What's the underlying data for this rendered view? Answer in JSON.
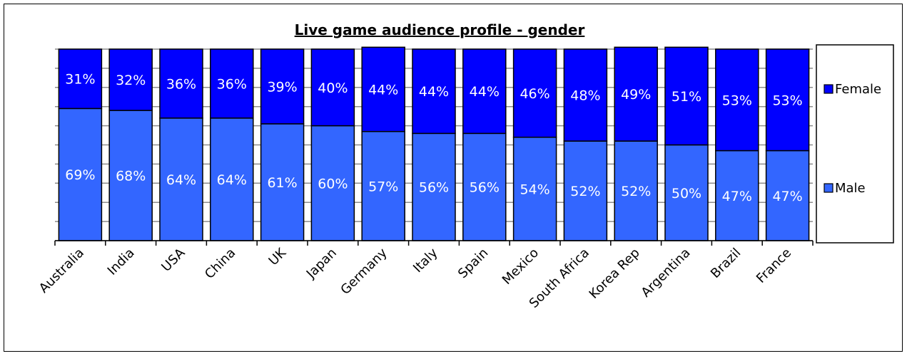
{
  "chart_data": {
    "type": "bar",
    "stacked": true,
    "title": "Live game audience profile - gender",
    "xlabel": "",
    "ylabel": "",
    "ylim": [
      0,
      100
    ],
    "grid": true,
    "legend_position": "right",
    "categories": [
      "Australia",
      "India",
      "USA",
      "China",
      "UK",
      "Japan",
      "Germany",
      "Italy",
      "Spain",
      "Mexico",
      "South Africa",
      "Korea Rep",
      "Argentina",
      "Brazil",
      "France"
    ],
    "series": [
      {
        "name": "Male",
        "color": "#3366ff",
        "values": [
          69,
          68,
          64,
          64,
          61,
          60,
          57,
          56,
          56,
          54,
          52,
          52,
          50,
          47,
          47
        ],
        "labels": [
          "69%",
          "68%",
          "64%",
          "64%",
          "61%",
          "60%",
          "57%",
          "56%",
          "56%",
          "54%",
          "52%",
          "52%",
          "50%",
          "47%",
          "47%"
        ]
      },
      {
        "name": "Female",
        "color": "#0000ff",
        "values": [
          31,
          32,
          36,
          36,
          39,
          40,
          44,
          44,
          44,
          46,
          48,
          49,
          51,
          53,
          53
        ],
        "labels": [
          "31%",
          "32%",
          "36%",
          "36%",
          "39%",
          "40%",
          "44%",
          "44%",
          "44%",
          "46%",
          "48%",
          "49%",
          "51%",
          "53%",
          "53%"
        ]
      }
    ],
    "legend": [
      {
        "name": "Female",
        "color": "#0000ff"
      },
      {
        "name": "Male",
        "color": "#3366ff"
      }
    ]
  }
}
